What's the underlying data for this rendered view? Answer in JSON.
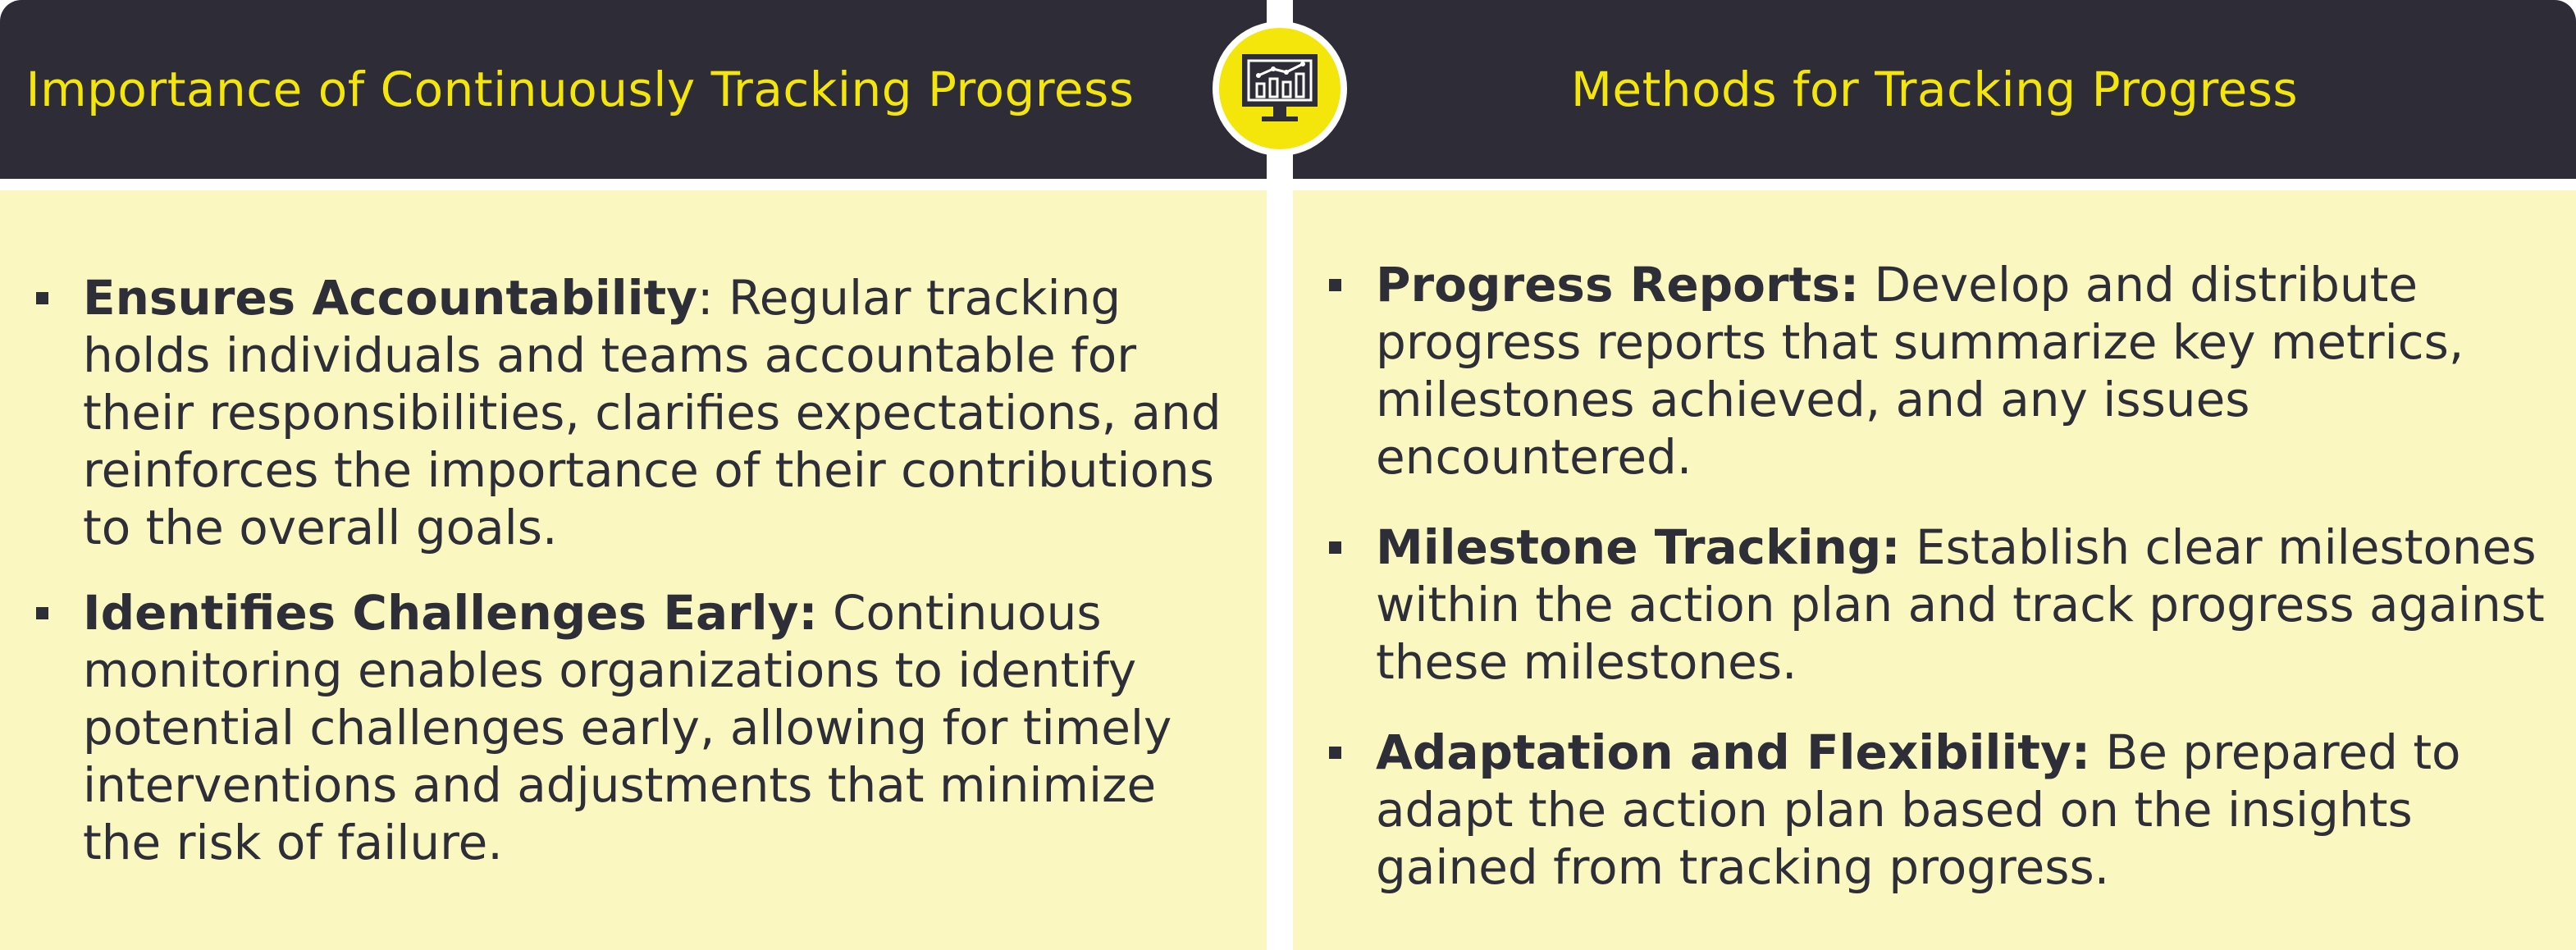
{
  "left": {
    "title": "Importance of Continuously Tracking Progress",
    "items": [
      {
        "term": "Ensures Accountability",
        "sep": ":",
        "text": " Regular tracking holds individuals and teams accountable for their responsibilities, clarifies expectations, and reinforces the importance of their contributions to the overall goals."
      },
      {
        "term": "Identifies Challenges Early:",
        "sep": "",
        "text": " Continuous monitoring enables organizations to identify potential challenges early, allowing for timely interventions and adjustments that minimize the risk of failure."
      }
    ]
  },
  "right": {
    "title": "Methods for Tracking Progress",
    "items": [
      {
        "term": "Progress Reports:",
        "sep": "",
        "text": " Develop and distribute progress reports that summarize key metrics, milestones achieved, and any issues encountered."
      },
      {
        "term": "Milestone Tracking:",
        "sep": "",
        "text": " Establish clear milestones within the action plan and track progress against these milestones."
      },
      {
        "term": "Adaptation and Flexibility:",
        "sep": "",
        "text": " Be prepared to adapt the action plan based on the insights gained from tracking progress."
      }
    ]
  },
  "badge": {
    "icon": "monitor-chart-icon"
  },
  "colors": {
    "header_bg": "#2d2c37",
    "accent_yellow": "#f4e60b",
    "panel_bg": "#fbf7c1",
    "text": "#2e2e38"
  }
}
